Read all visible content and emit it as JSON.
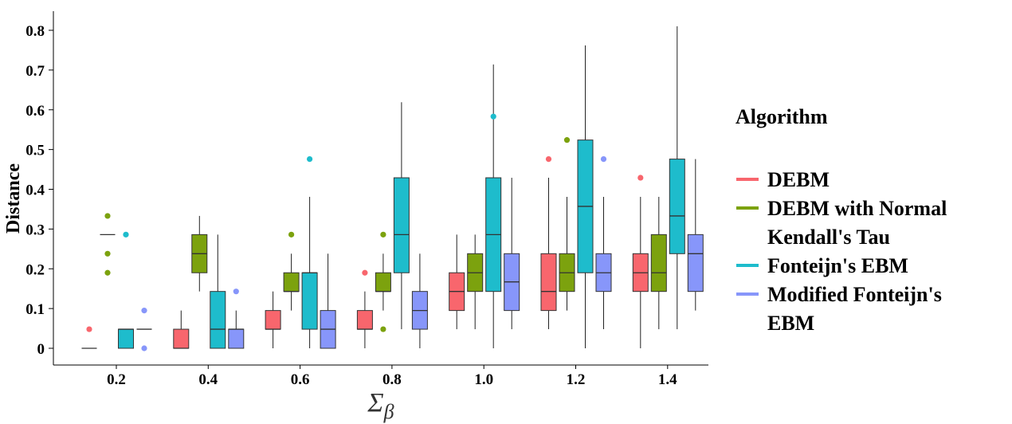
{
  "chart_data": {
    "type": "boxplot",
    "title": "",
    "xlabel": "Σβ",
    "ylabel": "Distance",
    "ylim": [
      -0.04,
      0.85
    ],
    "yticks": [
      0,
      0.1,
      0.2,
      0.3,
      0.4,
      0.5,
      0.6,
      0.7,
      0.8
    ],
    "ytick_labels": [
      "0",
      "0.1",
      "0.2",
      "0.3",
      "0.4",
      "0.5",
      "0.6",
      "0.7",
      "0.8"
    ],
    "categories": [
      "0.2",
      "0.4",
      "0.6",
      "0.8",
      "1.0",
      "1.2",
      "1.4"
    ],
    "legend": {
      "title": "Algorithm",
      "position": "right"
    },
    "series": [
      {
        "name": "DEBM",
        "color": "#F8666D",
        "boxes": [
          {
            "min": 0,
            "q1": 0,
            "median": 0,
            "q3": 0,
            "max": 0,
            "outliers": [
              0.048
            ]
          },
          {
            "min": 0,
            "q1": 0,
            "median": 0,
            "q3": 0.048,
            "max": 0.095,
            "outliers": []
          },
          {
            "min": 0,
            "q1": 0.048,
            "median": 0.048,
            "q3": 0.095,
            "max": 0.143,
            "outliers": []
          },
          {
            "min": 0,
            "q1": 0.048,
            "median": 0.048,
            "q3": 0.095,
            "max": 0.143,
            "outliers": [
              0.19
            ]
          },
          {
            "min": 0.048,
            "q1": 0.095,
            "median": 0.143,
            "q3": 0.19,
            "max": 0.286,
            "outliers": []
          },
          {
            "min": 0.048,
            "q1": 0.095,
            "median": 0.143,
            "q3": 0.238,
            "max": 0.429,
            "outliers": [
              0.476
            ]
          },
          {
            "min": 0,
            "q1": 0.143,
            "median": 0.19,
            "q3": 0.238,
            "max": 0.381,
            "outliers": [
              0.429
            ]
          }
        ]
      },
      {
        "name": "DEBM with Normal Kendall's Tau",
        "legend_lines": [
          "DEBM with Normal",
          "Kendall's Tau"
        ],
        "color": "#7CA20E",
        "boxes": [
          {
            "min": 0.286,
            "q1": 0.286,
            "median": 0.286,
            "q3": 0.286,
            "max": 0.286,
            "outliers": [
              0.333,
              0.238,
              0.19
            ]
          },
          {
            "min": 0.143,
            "q1": 0.19,
            "median": 0.238,
            "q3": 0.286,
            "max": 0.333,
            "outliers": []
          },
          {
            "min": 0.095,
            "q1": 0.143,
            "median": 0.143,
            "q3": 0.19,
            "max": 0.238,
            "outliers": [
              0.286
            ]
          },
          {
            "min": 0.095,
            "q1": 0.143,
            "median": 0.143,
            "q3": 0.19,
            "max": 0.238,
            "outliers": [
              0.286,
              0.048
            ]
          },
          {
            "min": 0.048,
            "q1": 0.143,
            "median": 0.19,
            "q3": 0.238,
            "max": 0.286,
            "outliers": []
          },
          {
            "min": 0.095,
            "q1": 0.143,
            "median": 0.19,
            "q3": 0.238,
            "max": 0.381,
            "outliers": [
              0.524
            ]
          },
          {
            "min": 0.048,
            "q1": 0.143,
            "median": 0.19,
            "q3": 0.286,
            "max": 0.381,
            "outliers": []
          }
        ]
      },
      {
        "name": "Fonteijn's EBM",
        "color": "#1EBCCC",
        "boxes": [
          {
            "min": 0,
            "q1": 0,
            "median": 0.048,
            "q3": 0.048,
            "max": 0.048,
            "outliers": [
              0.286
            ]
          },
          {
            "min": 0,
            "q1": 0,
            "median": 0.048,
            "q3": 0.143,
            "max": 0.286,
            "outliers": []
          },
          {
            "min": 0,
            "q1": 0.048,
            "median": 0.19,
            "q3": 0.19,
            "max": 0.381,
            "outliers": [
              0.476
            ]
          },
          {
            "min": 0.048,
            "q1": 0.19,
            "median": 0.286,
            "q3": 0.429,
            "max": 0.619,
            "outliers": []
          },
          {
            "min": 0,
            "q1": 0.143,
            "median": 0.286,
            "q3": 0.429,
            "max": 0.714,
            "outliers": [
              0.583
            ]
          },
          {
            "min": 0,
            "q1": 0.19,
            "median": 0.357,
            "q3": 0.524,
            "max": 0.762,
            "outliers": []
          },
          {
            "min": 0.048,
            "q1": 0.238,
            "median": 0.333,
            "q3": 0.476,
            "max": 0.81,
            "outliers": []
          }
        ]
      },
      {
        "name": "Modified Fonteijn's EBM",
        "legend_lines": [
          "Modified Fonteijn's",
          "EBM"
        ],
        "color": "#8796FA",
        "boxes": [
          {
            "min": 0.048,
            "q1": 0.048,
            "median": 0.048,
            "q3": 0.048,
            "max": 0.048,
            "outliers": [
              0.095,
              0
            ]
          },
          {
            "min": 0,
            "q1": 0,
            "median": 0.048,
            "q3": 0.048,
            "max": 0.095,
            "outliers": [
              0.143
            ]
          },
          {
            "min": 0,
            "q1": 0,
            "median": 0.048,
            "q3": 0.095,
            "max": 0.238,
            "outliers": []
          },
          {
            "min": 0,
            "q1": 0.048,
            "median": 0.095,
            "q3": 0.143,
            "max": 0.238,
            "outliers": []
          },
          {
            "min": 0.048,
            "q1": 0.095,
            "median": 0.167,
            "q3": 0.238,
            "max": 0.429,
            "outliers": []
          },
          {
            "min": 0.048,
            "q1": 0.143,
            "median": 0.19,
            "q3": 0.238,
            "max": 0.381,
            "outliers": [
              0.476
            ]
          },
          {
            "min": 0.095,
            "q1": 0.143,
            "median": 0.238,
            "q3": 0.286,
            "max": 0.476,
            "outliers": []
          }
        ]
      }
    ]
  }
}
